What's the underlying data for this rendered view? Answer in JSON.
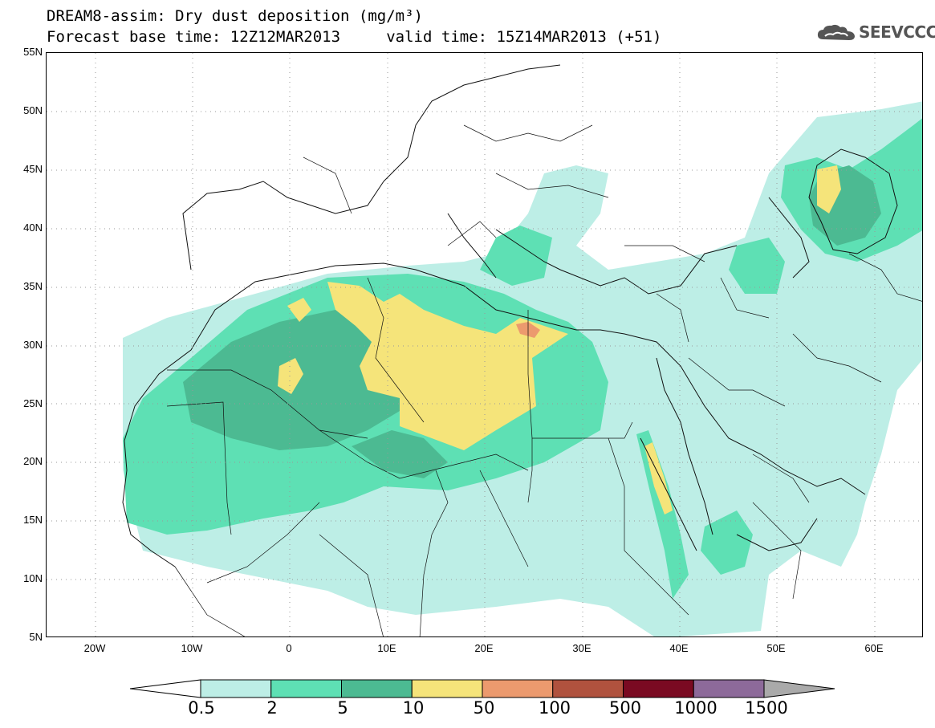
{
  "title": {
    "line1": "DREAM8-assim: Dry dust deposition (mg/m³)",
    "line2": "Forecast base time: 12Z12MAR2013     valid time: 15Z14MAR2013 (+51)"
  },
  "logo": {
    "text": "SEEVCCC",
    "icon": "cloud-logo-icon"
  },
  "map": {
    "region": "North Africa, Europe and Middle East",
    "lon_range": [
      -25,
      65
    ],
    "lat_range": [
      5,
      55
    ],
    "grid": true,
    "lat_labels": [
      "55N",
      "50N",
      "45N",
      "40N",
      "35N",
      "30N",
      "25N",
      "20N",
      "15N",
      "10N",
      "5N"
    ],
    "lon_labels": [
      "20W",
      "10W",
      "0",
      "10E",
      "20E",
      "30E",
      "40E",
      "50E",
      "60E"
    ]
  },
  "colorbar": {
    "labels": [
      "0.5",
      "2",
      "5",
      "10",
      "50",
      "100",
      "500",
      "1000",
      "1500"
    ],
    "colors": [
      "#bdeee6",
      "#5ee0b4",
      "#4cba92",
      "#f5e47a",
      "#ec9a6e",
      "#b0523e",
      "#7a0a22",
      "#8d6a9a"
    ],
    "under_color": "#ffffff",
    "over_color": "#aaaaaa",
    "level_colors": {
      "0.5-2": "#bdeee6",
      "2-5": "#5ee0b4",
      "5-10": "#4cba92",
      "10-50": "#f5e47a",
      "50-100": "#ec9a6e",
      "100-500": "#b0523e"
    }
  }
}
